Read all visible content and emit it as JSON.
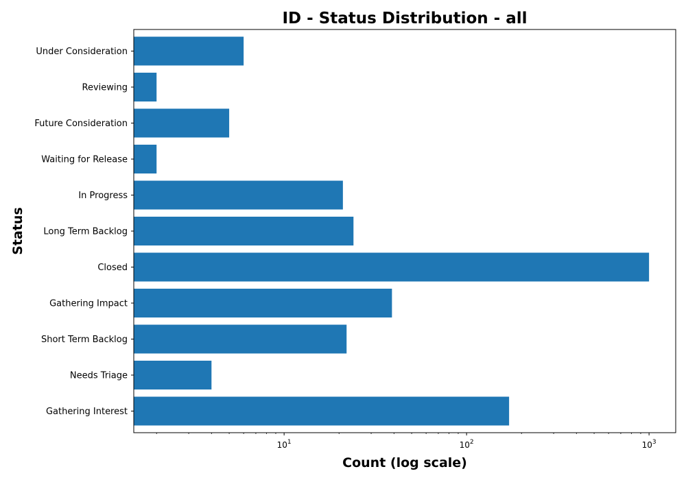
{
  "chart_data": {
    "type": "bar",
    "orientation": "horizontal",
    "title": "ID - Status Distribution - all",
    "xlabel": "Count (log scale)",
    "ylabel": "Status",
    "xscale": "log",
    "xlim": [
      1.5,
      1400
    ],
    "x_ticks": [
      {
        "value": 10,
        "base": "10",
        "exp": "1"
      },
      {
        "value": 100,
        "base": "10",
        "exp": "2"
      },
      {
        "value": 1000,
        "base": "10",
        "exp": "3"
      }
    ],
    "categories": [
      "Under Consideration",
      "Reviewing",
      "Future Consideration",
      "Waiting for Release",
      "In Progress",
      "Long Term Backlog",
      "Closed",
      "Gathering Impact",
      "Short Term Backlog",
      "Needs Triage",
      "Gathering Interest"
    ],
    "values": [
      6,
      2,
      5,
      2,
      21,
      24,
      1000,
      39,
      22,
      4,
      171
    ],
    "bar_color": "#1f77b4",
    "grid": false,
    "legend": "none"
  }
}
